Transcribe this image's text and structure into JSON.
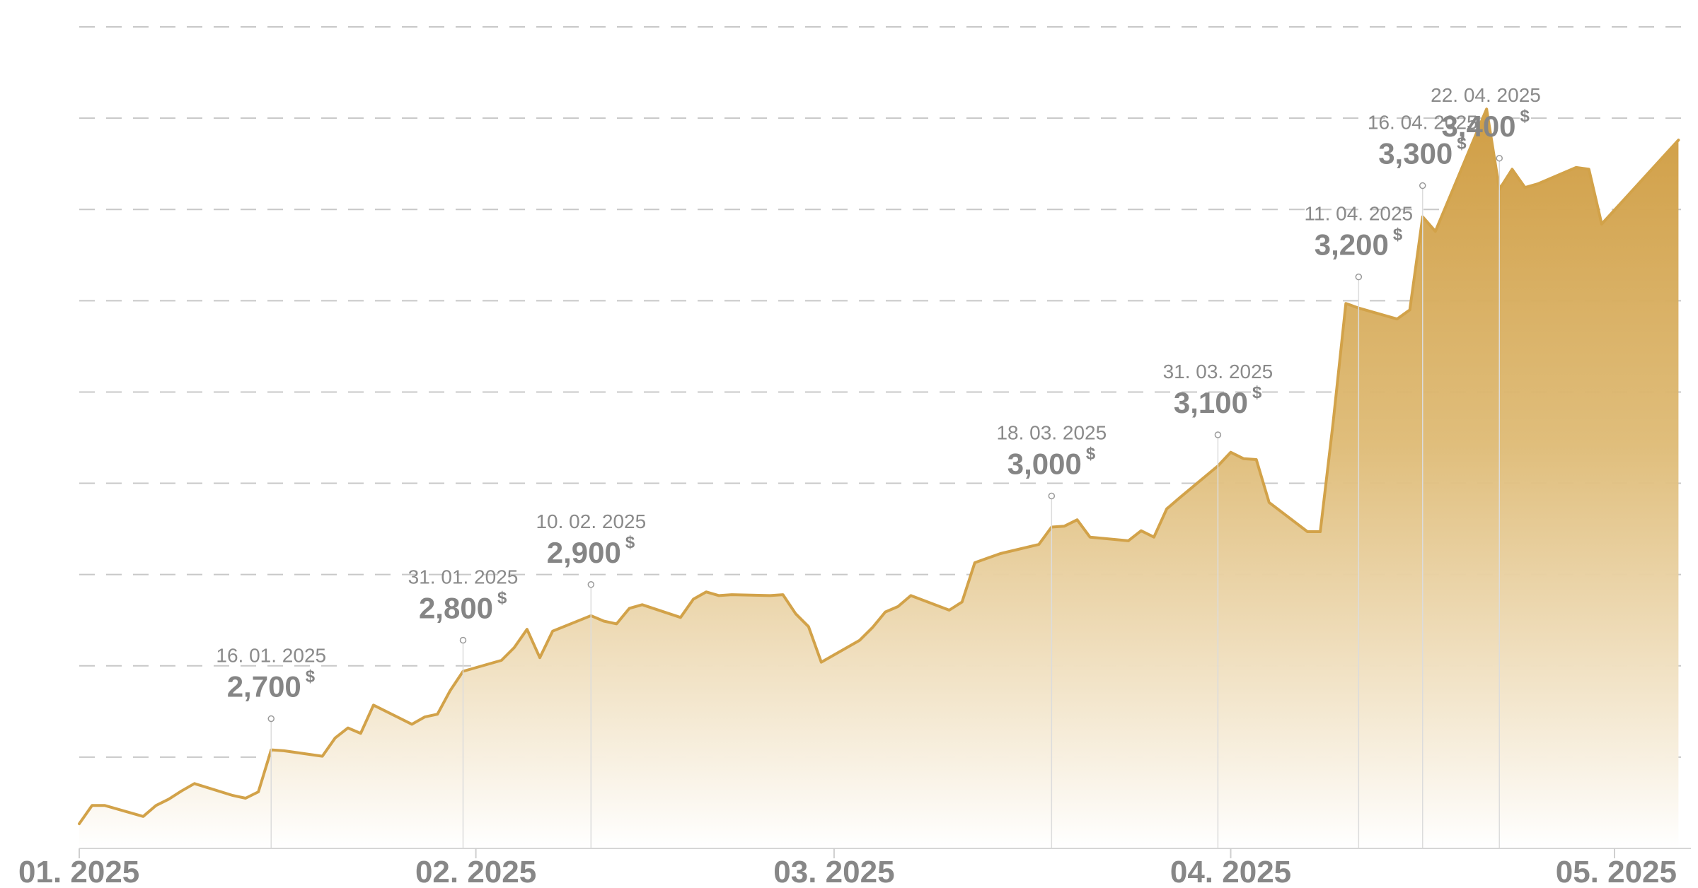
{
  "chart_data": {
    "type": "area",
    "title": "",
    "xlabel": "",
    "ylabel": "",
    "ylim": [
      2450,
      3350
    ],
    "grid": true,
    "grid_y": [
      2550,
      2650,
      2750,
      2850,
      2950,
      3050,
      3150,
      3250,
      3350
    ],
    "colors": {
      "line": "#d2a249",
      "fill_top": "#d09e45",
      "fill_bottom": "#ffffff",
      "grid": "#c8c8c8",
      "text": "#878787"
    },
    "x_ticks": [
      {
        "date": "2025-01-01",
        "label": "01. 2025"
      },
      {
        "date": "2025-02-01",
        "label": "02. 2025"
      },
      {
        "date": "2025-03-01",
        "label": "03. 2025"
      },
      {
        "date": "2025-04-01",
        "label": "04. 2025"
      },
      {
        "date": "2025-05-01",
        "label": "05. 2025"
      }
    ],
    "annotations": [
      {
        "date": "2025-01-16",
        "date_label": "16. 01. 2025",
        "value_label": "2,700",
        "unit": "$"
      },
      {
        "date": "2025-01-31",
        "date_label": "31. 01. 2025",
        "value_label": "2,800",
        "unit": "$"
      },
      {
        "date": "2025-02-10",
        "date_label": "10. 02. 2025",
        "value_label": "2,900",
        "unit": "$"
      },
      {
        "date": "2025-03-18",
        "date_label": "18. 03. 2025",
        "value_label": "3,000",
        "unit": "$"
      },
      {
        "date": "2025-03-31",
        "date_label": "31. 03. 2025",
        "value_label": "3,100",
        "unit": "$"
      },
      {
        "date": "2025-04-11",
        "date_label": "11. 04. 2025",
        "value_label": "3,200",
        "unit": "$"
      },
      {
        "date": "2025-04-16",
        "date_label": "16. 04. 2025",
        "value_label": "3,300",
        "unit": "$"
      },
      {
        "date": "2025-04-22",
        "date_label": "22. 04. 2025",
        "value_label": "3,400",
        "unit": "$"
      }
    ],
    "series": [
      {
        "points": [
          [
            "2025-01-01",
            2477
          ],
          [
            "2025-01-02",
            2497
          ],
          [
            "2025-01-03",
            2497
          ],
          [
            "2025-01-06",
            2485
          ],
          [
            "2025-01-07",
            2497
          ],
          [
            "2025-01-08",
            2504
          ],
          [
            "2025-01-09",
            2513
          ],
          [
            "2025-01-10",
            2521
          ],
          [
            "2025-01-13",
            2508
          ],
          [
            "2025-01-14",
            2505
          ],
          [
            "2025-01-15",
            2512
          ],
          [
            "2025-01-16",
            2558
          ],
          [
            "2025-01-17",
            2557
          ],
          [
            "2025-01-20",
            2551
          ],
          [
            "2025-01-21",
            2571
          ],
          [
            "2025-01-22",
            2582
          ],
          [
            "2025-01-23",
            2576
          ],
          [
            "2025-01-24",
            2607
          ],
          [
            "2025-01-27",
            2586
          ],
          [
            "2025-01-28",
            2594
          ],
          [
            "2025-01-29",
            2597
          ],
          [
            "2025-01-30",
            2623
          ],
          [
            "2025-01-31",
            2644
          ],
          [
            "2025-02-03",
            2656
          ],
          [
            "2025-02-04",
            2670
          ],
          [
            "2025-02-05",
            2690
          ],
          [
            "2025-02-06",
            2659
          ],
          [
            "2025-02-07",
            2688
          ],
          [
            "2025-02-10",
            2705
          ],
          [
            "2025-02-11",
            2699
          ],
          [
            "2025-02-12",
            2696
          ],
          [
            "2025-02-13",
            2713
          ],
          [
            "2025-02-14",
            2717
          ],
          [
            "2025-02-17",
            2703
          ],
          [
            "2025-02-18",
            2723
          ],
          [
            "2025-02-19",
            2731
          ],
          [
            "2025-02-20",
            2727
          ],
          [
            "2025-02-21",
            2728
          ],
          [
            "2025-02-24",
            2727
          ],
          [
            "2025-02-25",
            2728
          ],
          [
            "2025-02-26",
            2707
          ],
          [
            "2025-02-27",
            2693
          ],
          [
            "2025-02-28",
            2654
          ],
          [
            "2025-03-03",
            2678
          ],
          [
            "2025-03-04",
            2692
          ],
          [
            "2025-03-05",
            2709
          ],
          [
            "2025-03-06",
            2715
          ],
          [
            "2025-03-07",
            2727
          ],
          [
            "2025-03-10",
            2711
          ],
          [
            "2025-03-11",
            2720
          ],
          [
            "2025-03-12",
            2763
          ],
          [
            "2025-03-13",
            2768
          ],
          [
            "2025-03-14",
            2773
          ],
          [
            "2025-03-17",
            2783
          ],
          [
            "2025-03-18",
            2802
          ],
          [
            "2025-03-19",
            2803
          ],
          [
            "2025-03-20",
            2810
          ],
          [
            "2025-03-21",
            2791
          ],
          [
            "2025-03-24",
            2787
          ],
          [
            "2025-03-25",
            2798
          ],
          [
            "2025-03-26",
            2791
          ],
          [
            "2025-03-27",
            2822
          ],
          [
            "2025-03-28",
            2834
          ],
          [
            "2025-03-31",
            2869
          ],
          [
            "2025-04-01",
            2884
          ],
          [
            "2025-04-02",
            2877
          ],
          [
            "2025-04-03",
            2876
          ],
          [
            "2025-04-04",
            2829
          ],
          [
            "2025-04-07",
            2797
          ],
          [
            "2025-04-08",
            2797
          ],
          [
            "2025-04-09",
            2916
          ],
          [
            "2025-04-10",
            3047
          ],
          [
            "2025-04-11",
            3042
          ],
          [
            "2025-04-14",
            3030
          ],
          [
            "2025-04-15",
            3040
          ],
          [
            "2025-04-16",
            3142
          ],
          [
            "2025-04-17",
            3126
          ],
          [
            "2025-04-21",
            3260
          ],
          [
            "2025-04-22",
            3172
          ],
          [
            "2025-04-23",
            3194
          ],
          [
            "2025-04-24",
            3174
          ],
          [
            "2025-04-25",
            3178
          ],
          [
            "2025-04-28",
            3196
          ],
          [
            "2025-04-29",
            3194
          ],
          [
            "2025-04-30",
            3134
          ],
          [
            "2025-05-06",
            3226
          ]
        ]
      }
    ]
  }
}
